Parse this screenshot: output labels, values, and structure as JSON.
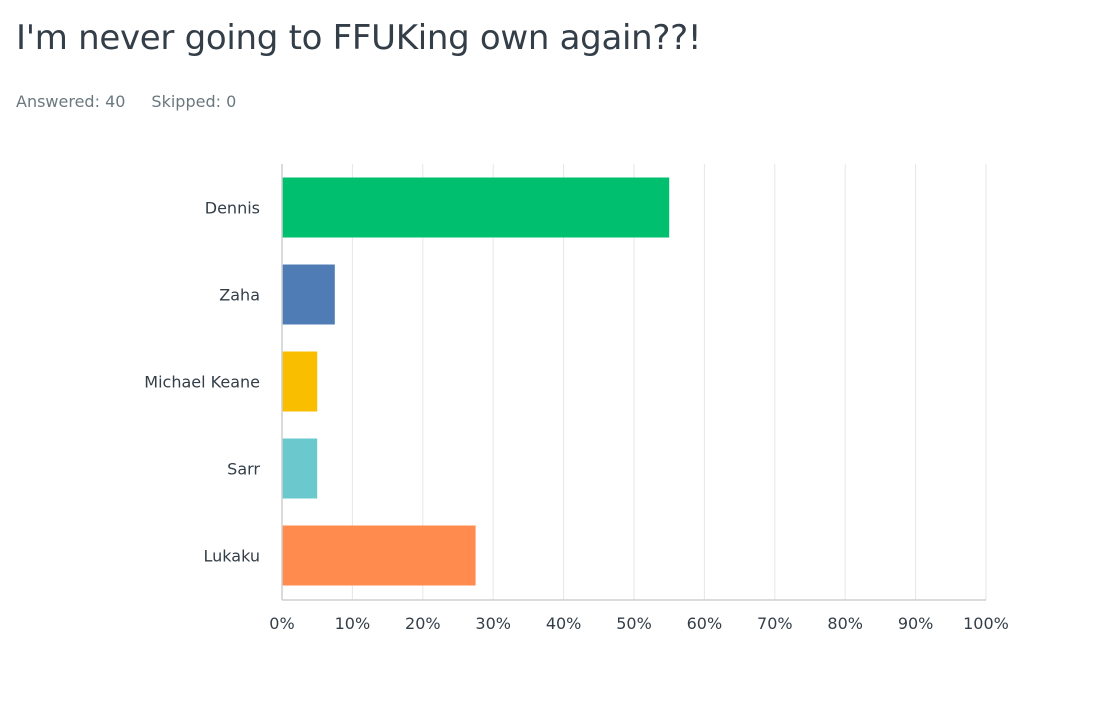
{
  "question": {
    "title": "I'm never going to FFUKing own again??!",
    "answered_label": "Answered:",
    "answered_count": "40",
    "skipped_label": "Skipped:",
    "skipped_count": "0"
  },
  "chart_data": {
    "type": "bar",
    "orientation": "horizontal",
    "categories": [
      "Dennis",
      "Zaha",
      "Michael Keane",
      "Sarr",
      "Lukaku"
    ],
    "values": [
      55.0,
      7.5,
      5.0,
      5.0,
      27.5
    ],
    "unit": "%",
    "colors": [
      "#00bf6f",
      "#507cb6",
      "#f9be00",
      "#6bc8cd",
      "#ff8b4f"
    ],
    "xlim": [
      0,
      100
    ],
    "xticks": [
      "0%",
      "10%",
      "20%",
      "30%",
      "40%",
      "50%",
      "60%",
      "70%",
      "80%",
      "90%",
      "100%"
    ],
    "grid": true,
    "legend": "none"
  }
}
